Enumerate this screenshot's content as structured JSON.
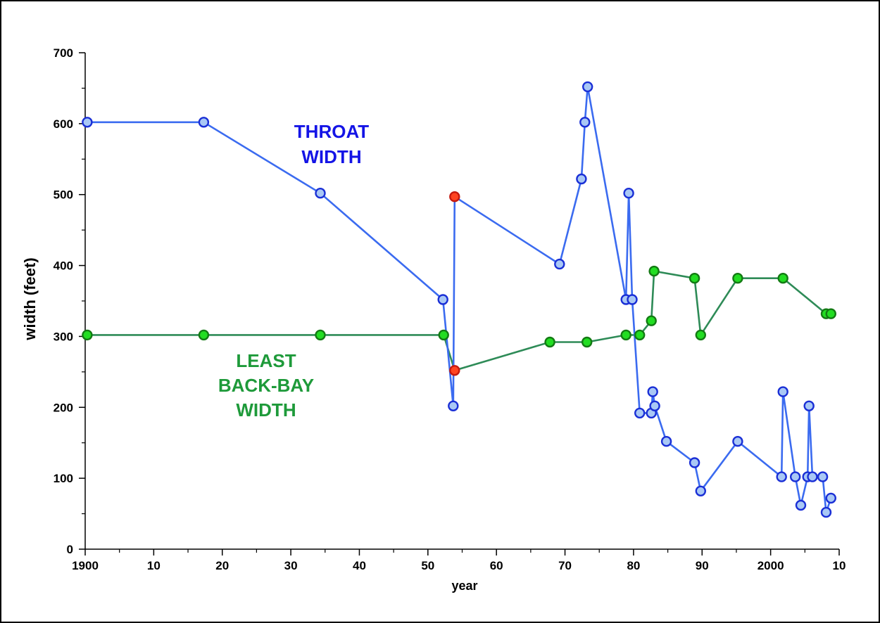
{
  "chart_data": {
    "type": "line",
    "title": "",
    "xlabel": "year",
    "ylabel": "width (feet)",
    "xlim": [
      1900,
      2010
    ],
    "ylim": [
      0,
      700
    ],
    "x_ticks": [
      1900,
      1910,
      1920,
      1930,
      1940,
      1950,
      1960,
      1970,
      1980,
      1990,
      2000,
      2010
    ],
    "x_tick_labels": [
      "1900",
      "10",
      "20",
      "30",
      "40",
      "50",
      "60",
      "70",
      "80",
      "90",
      "2000",
      "10"
    ],
    "y_ticks": [
      0,
      100,
      200,
      300,
      400,
      500,
      600,
      700
    ],
    "y_tick_labels": [
      "0",
      "100",
      "200",
      "300",
      "400",
      "500",
      "600",
      "700"
    ],
    "grid": false,
    "series": [
      {
        "name": "THROAT WIDTH",
        "label_lines": [
          "THROAT",
          "WIDTH"
        ],
        "line_color": "#3b6bf0",
        "label_color": "#1414e6",
        "marker_color": "#a9c8f5",
        "marker_edge": "#1a2fd6",
        "highlight_color": "#ff4422",
        "highlight_edge": "#c41a10",
        "points": [
          {
            "x": 1900.3,
            "y": 602
          },
          {
            "x": 1917.3,
            "y": 602
          },
          {
            "x": 1934.3,
            "y": 502
          },
          {
            "x": 1952.2,
            "y": 352
          },
          {
            "x": 1953.7,
            "y": 202
          },
          {
            "x": 1953.9,
            "y": 497,
            "highlight": true
          },
          {
            "x": 1969.2,
            "y": 402
          },
          {
            "x": 1972.4,
            "y": 522
          },
          {
            "x": 1972.9,
            "y": 602
          },
          {
            "x": 1973.3,
            "y": 652
          },
          {
            "x": 1978.9,
            "y": 352
          },
          {
            "x": 1979.3,
            "y": 502
          },
          {
            "x": 1979.8,
            "y": 352
          },
          {
            "x": 1980.9,
            "y": 192
          },
          {
            "x": 1982.6,
            "y": 192
          },
          {
            "x": 1982.8,
            "y": 222
          },
          {
            "x": 1983.1,
            "y": 202
          },
          {
            "x": 1984.8,
            "y": 152
          },
          {
            "x": 1988.9,
            "y": 122
          },
          {
            "x": 1989.8,
            "y": 82
          },
          {
            "x": 1995.2,
            "y": 152
          },
          {
            "x": 2001.6,
            "y": 102
          },
          {
            "x": 2001.8,
            "y": 222
          },
          {
            "x": 2003.6,
            "y": 102
          },
          {
            "x": 2004.4,
            "y": 62
          },
          {
            "x": 2005.4,
            "y": 102
          },
          {
            "x": 2005.6,
            "y": 202
          },
          {
            "x": 2006.1,
            "y": 102
          },
          {
            "x": 2007.6,
            "y": 102
          },
          {
            "x": 2008.1,
            "y": 52
          },
          {
            "x": 2008.8,
            "y": 72
          }
        ]
      },
      {
        "name": "LEAST BACK-BAY WIDTH",
        "label_lines": [
          "LEAST",
          "BACK-BAY",
          "WIDTH"
        ],
        "line_color": "#2e8b57",
        "label_color": "#1e9a3a",
        "marker_color": "#22dd22",
        "marker_edge": "#137a13",
        "highlight_color": "#ff4422",
        "highlight_edge": "#c41a10",
        "points": [
          {
            "x": 1900.3,
            "y": 302
          },
          {
            "x": 1917.3,
            "y": 302
          },
          {
            "x": 1934.3,
            "y": 302
          },
          {
            "x": 1952.3,
            "y": 302
          },
          {
            "x": 1953.9,
            "y": 252,
            "highlight": true
          },
          {
            "x": 1967.8,
            "y": 292
          },
          {
            "x": 1973.2,
            "y": 292
          },
          {
            "x": 1978.9,
            "y": 302
          },
          {
            "x": 1980.9,
            "y": 302
          },
          {
            "x": 1982.6,
            "y": 322
          },
          {
            "x": 1983.0,
            "y": 392
          },
          {
            "x": 1988.9,
            "y": 382
          },
          {
            "x": 1989.8,
            "y": 302
          },
          {
            "x": 1995.2,
            "y": 382
          },
          {
            "x": 2001.8,
            "y": 382
          },
          {
            "x": 2008.1,
            "y": 332
          },
          {
            "x": 2008.8,
            "y": 332
          }
        ]
      }
    ]
  }
}
